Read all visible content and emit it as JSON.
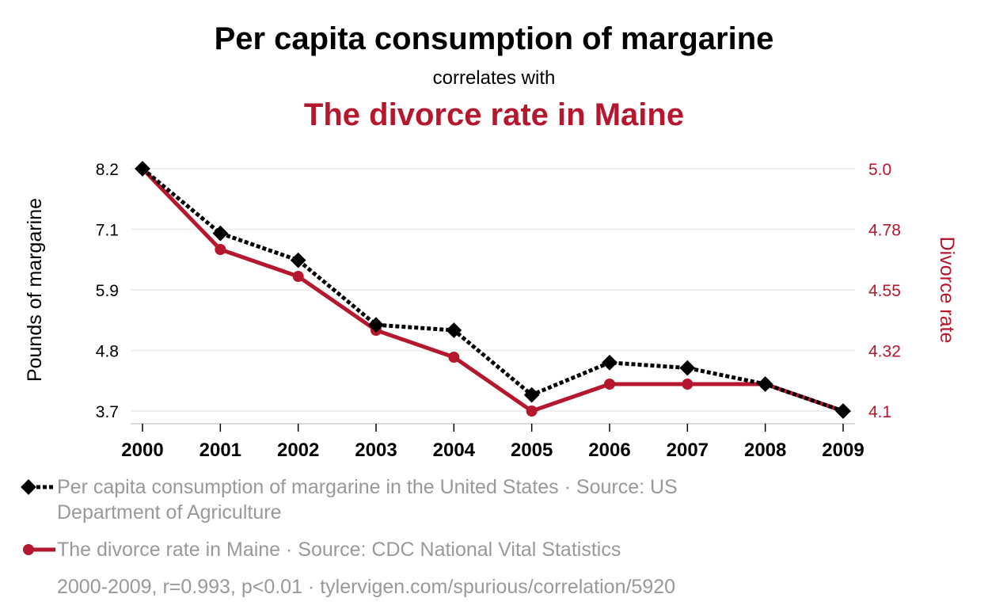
{
  "header": {
    "title": "Per capita consumption of margarine",
    "connector": "correlates with",
    "title2": "The divorce rate in Maine"
  },
  "colors": {
    "series1": "#000000",
    "series2": "#b5172e",
    "grid": "#eeeeee",
    "legend_text": "#999999"
  },
  "chart_data": {
    "type": "line",
    "x": [
      "2000",
      "2001",
      "2002",
      "2003",
      "2004",
      "2005",
      "2006",
      "2007",
      "2008",
      "2009"
    ],
    "grid": true,
    "y_left": {
      "label": "Pounds of margarine",
      "range": [
        3.7,
        8.2
      ],
      "ticks": [
        "8.2",
        "7.1",
        "5.9",
        "4.8",
        "3.7"
      ]
    },
    "y_right": {
      "label": "Divorce rate",
      "range": [
        4.1,
        5.0
      ],
      "ticks": [
        "5.0",
        "4.78",
        "4.55",
        "4.32",
        "4.1"
      ]
    },
    "series": [
      {
        "name": "Per capita consumption of margarine in the United States",
        "axis": "left",
        "style": "dotted",
        "marker": "diamond",
        "values": [
          8.2,
          7.0,
          6.5,
          5.3,
          5.2,
          4.0,
          4.6,
          4.5,
          4.2,
          3.7
        ]
      },
      {
        "name": "The divorce rate in Maine",
        "axis": "right",
        "style": "solid",
        "marker": "circle",
        "values": [
          5.0,
          4.7,
          4.6,
          4.4,
          4.3,
          4.1,
          4.2,
          4.2,
          4.2,
          4.1
        ]
      }
    ]
  },
  "legend": {
    "item1": "Per capita consumption of margarine in the United States · Source: US Department of Agriculture",
    "item2": "The divorce rate in Maine · Source: CDC National Vital Statistics"
  },
  "footer": {
    "note": "2000-2009, r=0.993, p<0.01 · tylervigen.com/spurious/correlation/5920"
  }
}
